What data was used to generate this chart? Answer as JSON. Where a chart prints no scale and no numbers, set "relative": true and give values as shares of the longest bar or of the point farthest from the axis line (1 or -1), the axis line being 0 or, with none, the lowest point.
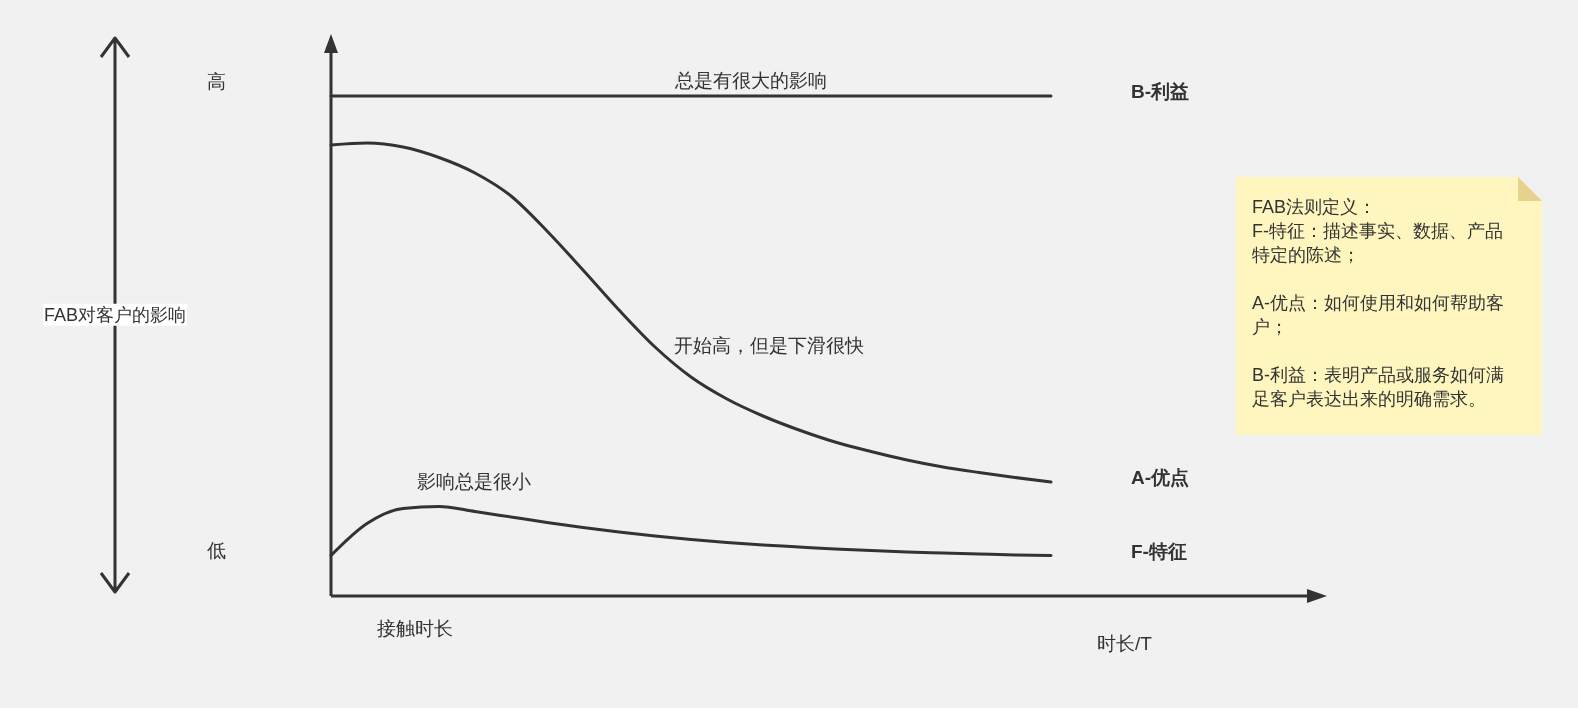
{
  "chart_data": {
    "type": "line",
    "relative": true,
    "xlabel": "时长/T",
    "categories": [
      null,
      null,
      null,
      null,
      null,
      null,
      null,
      null,
      null,
      null,
      null,
      null,
      null,
      null,
      null,
      null,
      null,
      null,
      null,
      null,
      null,
      null,
      null,
      null,
      null,
      null,
      null,
      null
    ],
    "series": [
      {
        "name": "B-利益",
        "color": "#333333",
        "values": [
          1,
          1,
          1,
          1,
          1,
          1,
          1,
          1,
          1,
          1,
          1,
          1,
          1,
          1,
          1,
          1,
          1,
          1,
          1,
          1,
          1,
          null,
          null,
          null,
          null,
          null,
          null,
          null
        ]
      },
      {
        "name": "A-优点",
        "color": "#333333",
        "values": [
          0.902,
          0.906,
          0.898,
          0.877,
          0.846,
          0.8,
          0.73,
          0.652,
          0.572,
          0.498,
          0.438,
          0.394,
          0.36,
          0.332,
          0.308,
          0.289,
          0.272,
          0.258,
          0.247,
          0.237,
          0.228,
          null,
          null,
          null,
          null,
          null,
          null,
          null
        ]
      },
      {
        "name": "F-特征",
        "color": "#333333",
        "values": [
          0.081,
          0.145,
          0.175,
          0.179,
          0.169,
          0.158,
          0.147,
          0.137,
          0.128,
          0.12,
          0.113,
          0.107,
          0.102,
          0.098,
          0.094,
          0.091,
          0.088,
          0.086,
          0.084,
          0.082,
          0.081,
          null,
          null,
          null,
          null,
          null,
          null,
          null
        ]
      }
    ],
    "annotations": [
      "FAB对客户的影响",
      "高",
      "低",
      "总是有很大的影响",
      "开始高，但是下滑很快",
      "影响总是很小",
      "接触时长",
      "FAB法则定义：\nF-特征：描述事实、数据、产品特定的陈述；\n\nA-优点：如何使用和如何帮助客户；\n\nB-利益：表明产品或服务如何满足客户表达出来的明确需求。"
    ]
  }
}
